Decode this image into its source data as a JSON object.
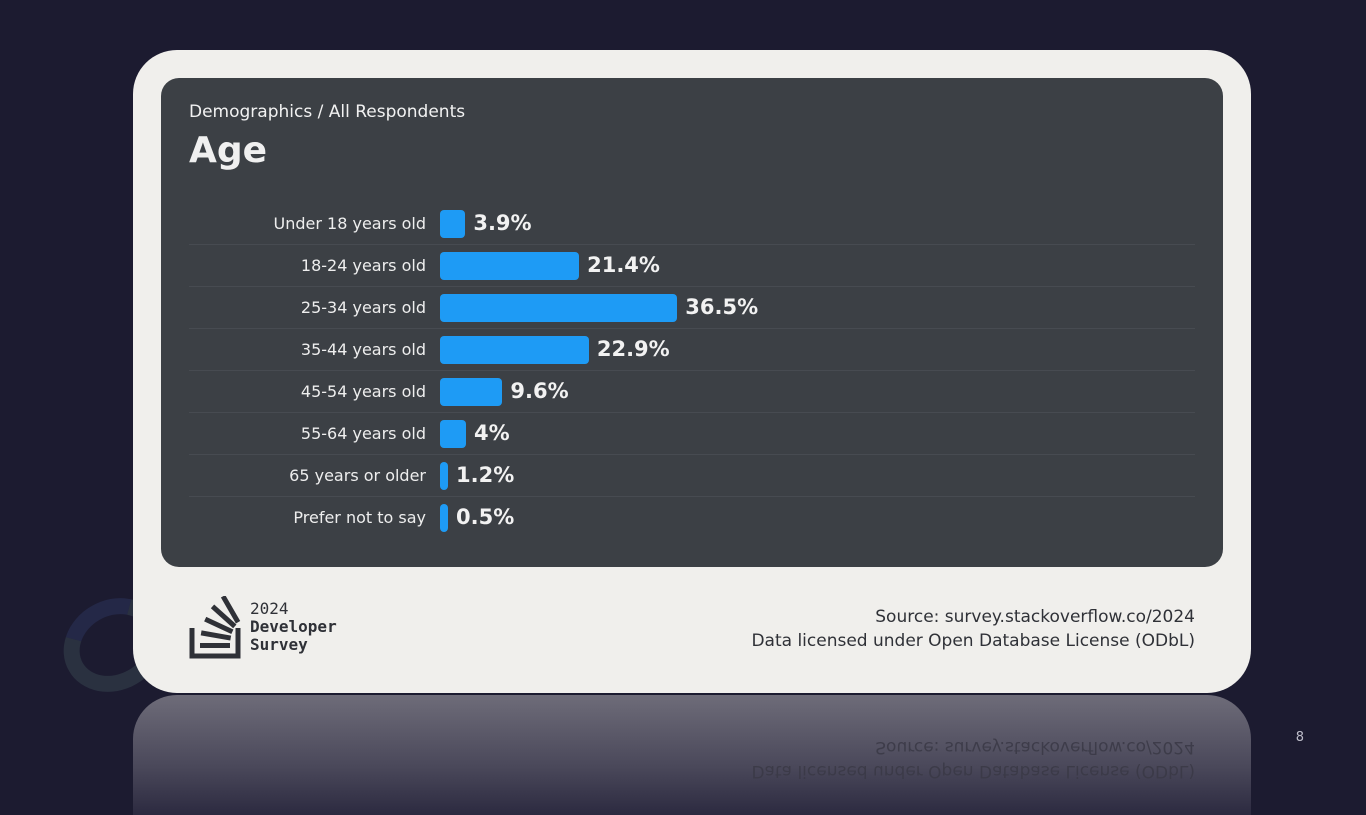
{
  "header": {
    "breadcrumb": "Demographics / All Respondents",
    "title": "Age"
  },
  "chart_data": {
    "type": "bar",
    "orientation": "horizontal",
    "title": "Age",
    "categories": [
      "Under 18 years old",
      "18-24 years old",
      "25-34 years old",
      "35-44 years old",
      "45-54 years old",
      "55-64 years old",
      "65 years or older",
      "Prefer not to say"
    ],
    "values": [
      3.9,
      21.4,
      36.5,
      22.9,
      9.6,
      4,
      1.2,
      0.5
    ],
    "value_labels": [
      "3.9%",
      "21.4%",
      "36.5%",
      "22.9%",
      "9.6%",
      "4%",
      "1.2%",
      "0.5%"
    ],
    "unit": "%",
    "xlim": [
      0,
      100
    ],
    "grid": false,
    "legend": "none",
    "bar_color": "#1e9bf5"
  },
  "footer": {
    "logo": {
      "icon": "stack-overflow-logo-icon",
      "year": "2024",
      "line1": "Developer",
      "line2": "Survey"
    },
    "source": "Source: survey.stackoverflow.co/2024",
    "license": "Data licensed under Open Database License (ODbL)"
  },
  "page_number": "8",
  "colors": {
    "background": "#1c1b30",
    "card": "#f0efec",
    "panel": "#3c4045",
    "accent": "#1e9bf5"
  }
}
